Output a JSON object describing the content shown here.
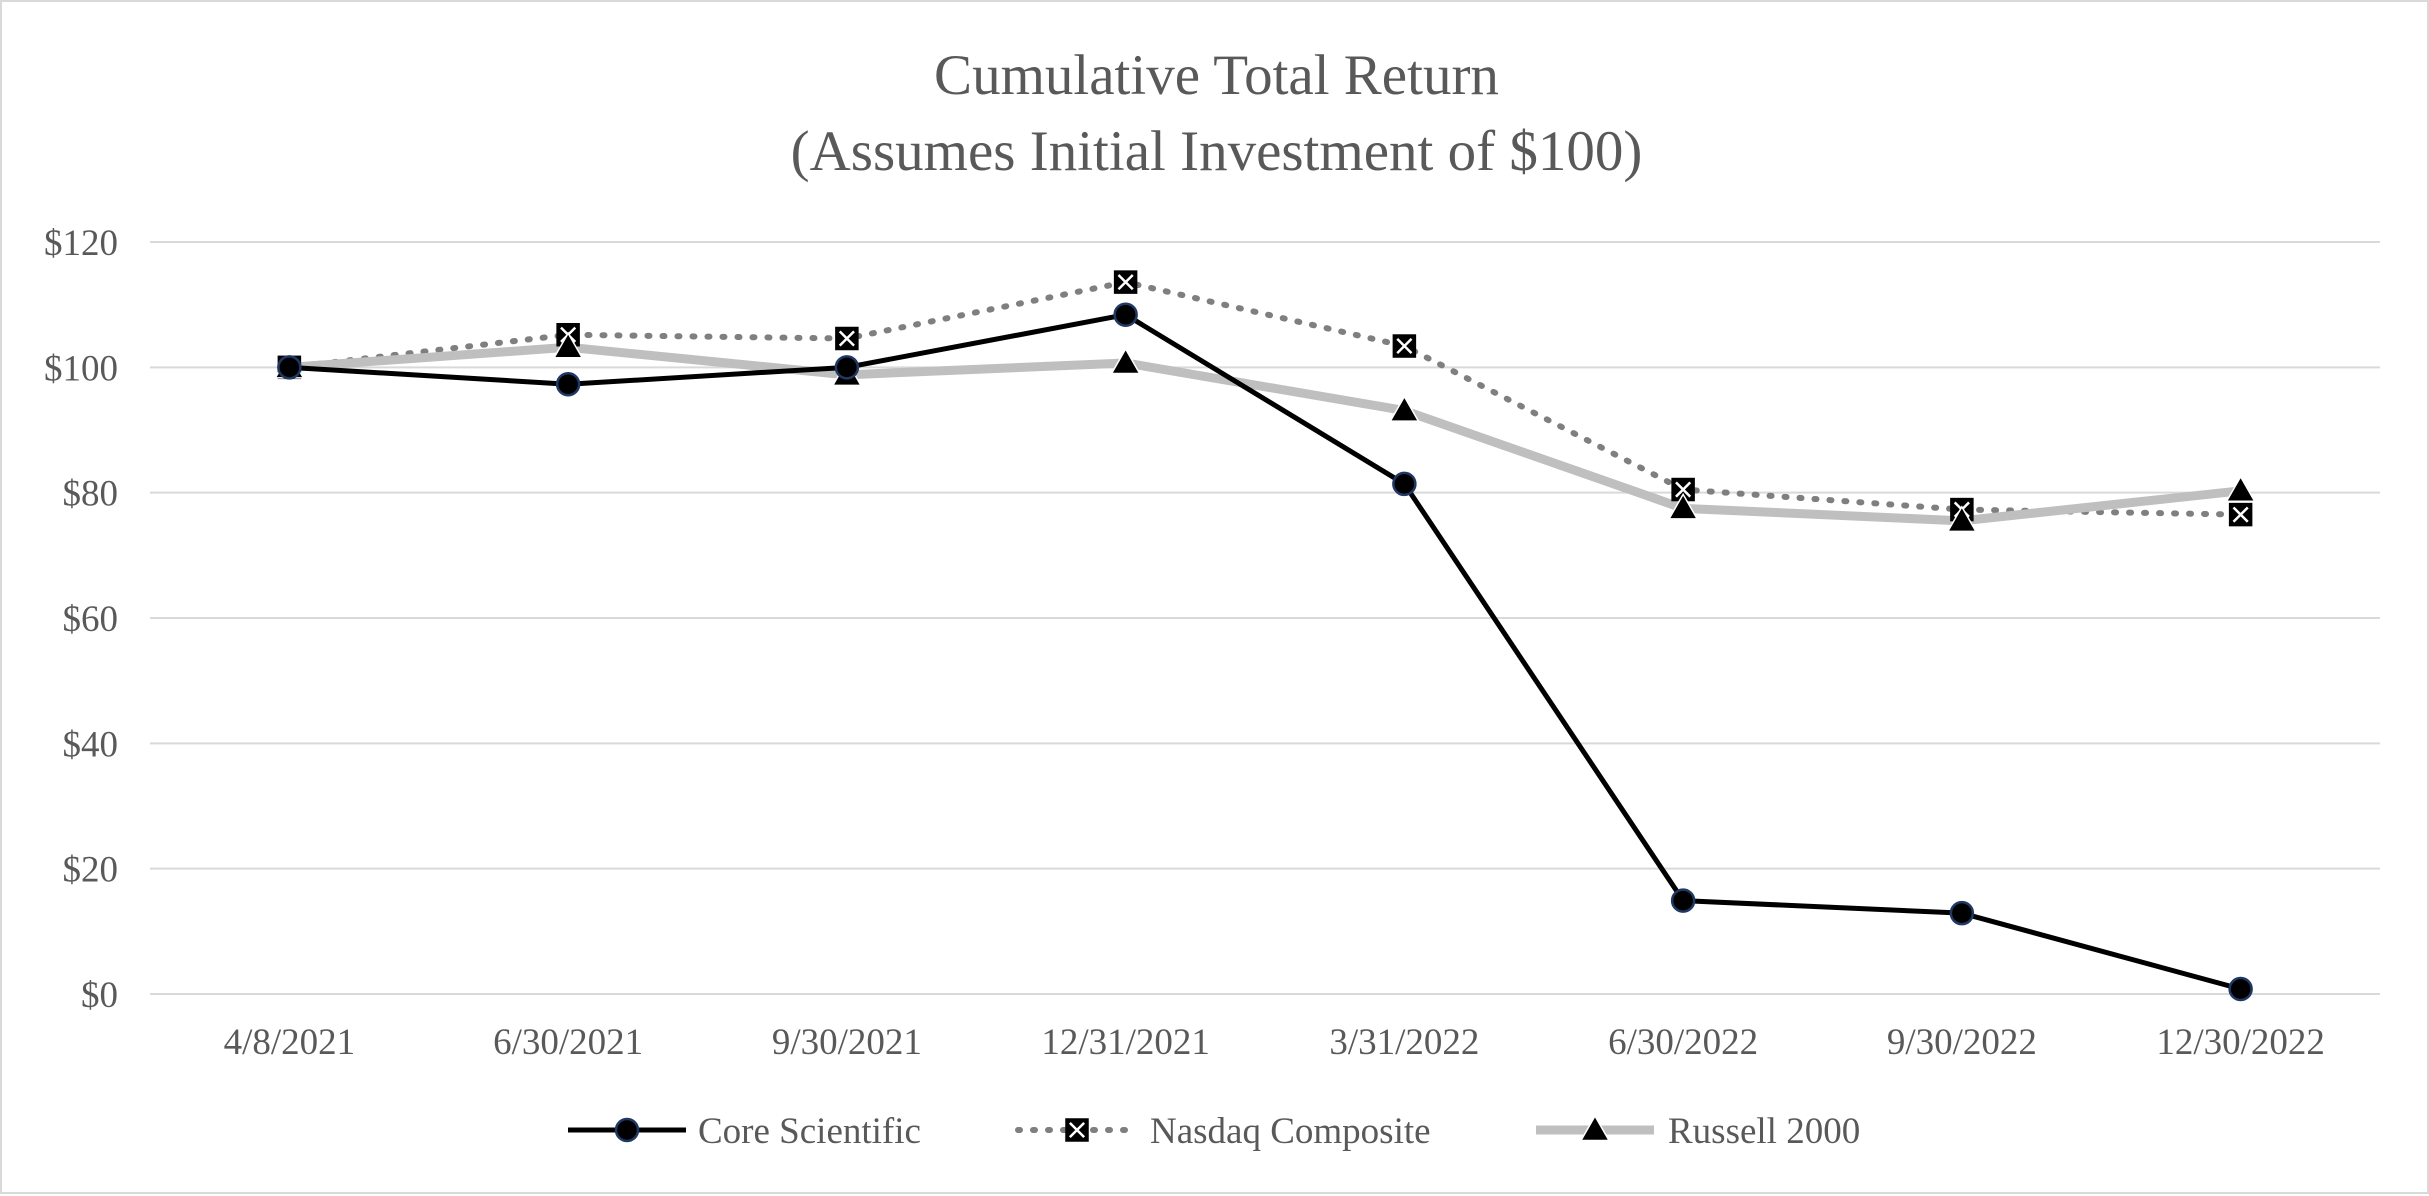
{
  "chart_data": {
    "type": "line",
    "title": "Cumulative Total Return",
    "subtitle": "(Assumes Initial Investment of $100)",
    "categories": [
      "4/8/2021",
      "6/30/2021",
      "9/30/2021",
      "12/31/2021",
      "3/31/2022",
      "6/30/2022",
      "9/30/2022",
      "12/30/2022"
    ],
    "ylim": [
      0,
      120
    ],
    "y_ticks": [
      0,
      20,
      40,
      60,
      80,
      100,
      120
    ],
    "y_tick_labels": [
      "$0",
      "$20",
      "$40",
      "$60",
      "$80",
      "$100",
      "$120"
    ],
    "grid": true,
    "legend_position": "bottom",
    "series": [
      {
        "name": "Core Scientific",
        "values": [
          100,
          97.3,
          100,
          108.4,
          81.4,
          14.9,
          12.9,
          0.8
        ],
        "color": "#000000",
        "line_style": "solid",
        "marker": "circle",
        "marker_fill": "#000000",
        "marker_edge": "#1f3864"
      },
      {
        "name": "Nasdaq Composite",
        "values": [
          100,
          105.2,
          104.6,
          113.6,
          103.4,
          80.5,
          77.3,
          76.5
        ],
        "color": "#7f7f7f",
        "line_style": "dotted",
        "marker": "x-square",
        "marker_fill": "#000000",
        "marker_edge": "#ffffff"
      },
      {
        "name": "Russell 2000",
        "values": [
          100,
          103.2,
          98.8,
          100.7,
          93.1,
          77.5,
          75.5,
          80.3
        ],
        "color": "#bfbfbf",
        "line_style": "solid",
        "marker": "triangle",
        "marker_fill": "#000000",
        "marker_edge": "#ffffff"
      }
    ]
  }
}
